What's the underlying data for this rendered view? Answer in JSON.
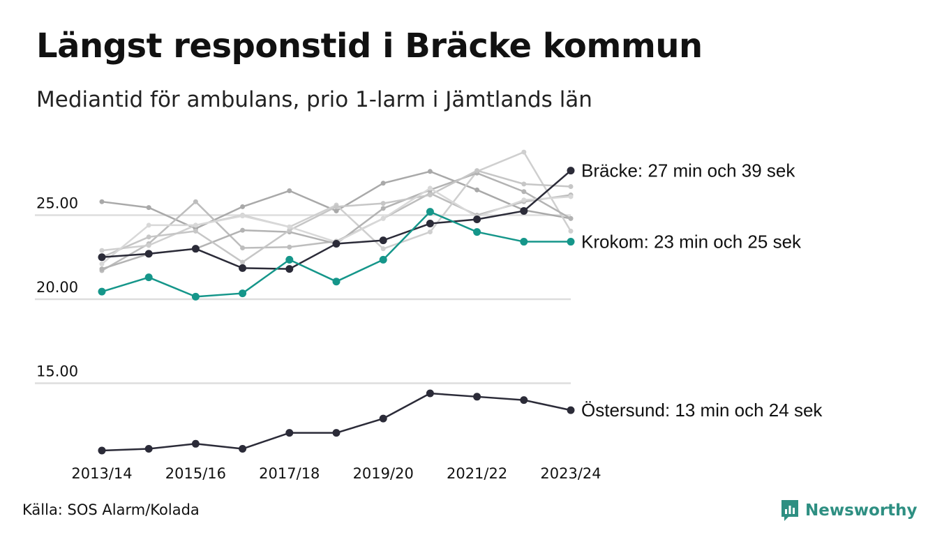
{
  "header": {
    "title": "Längst responstid i Bräcke kommun",
    "subtitle": "Mediantid för ambulans, prio 1-larm i Jämtlands län"
  },
  "footer": {
    "source": "Källa: SOS Alarm/Kolada",
    "logo_text": "Newsworthy"
  },
  "colors": {
    "highlight_dark": "#2b2b38",
    "highlight_teal": "#15968a",
    "background_series": [
      "#a9a9a9",
      "#bdbdbd",
      "#cfcfcf",
      "#b3b3b3",
      "#c6c6c6",
      "#d8d8d8"
    ],
    "grid": "#dddddd",
    "brand": "#2e8f82"
  },
  "chart_data": {
    "type": "line",
    "title": "Längst responstid i Bräcke kommun",
    "subtitle": "Mediantid för ambulans, prio 1-larm i Jämtlands län",
    "x": [
      "2013/14",
      "2014/15",
      "2015/16",
      "2016/17",
      "2017/18",
      "2018/19",
      "2019/20",
      "2020/21",
      "2021/22",
      "2022/23",
      "2023/24"
    ],
    "x_tick_labels": [
      "2013/14",
      "2015/16",
      "2017/18",
      "2019/20",
      "2021/22",
      "2023/24"
    ],
    "y_ticks": [
      "15.00",
      "20.00",
      "25.00"
    ],
    "ylim": [
      10.5,
      29.5
    ],
    "grid": true,
    "legend": "none",
    "series": [
      {
        "values": [
          25.8,
          25.45,
          24.2,
          25.5,
          26.45,
          25.25,
          26.9,
          27.6,
          26.5,
          25.3,
          24.8
        ],
        "role": "background"
      },
      {
        "values": [
          21.7,
          23.3,
          25.8,
          23.05,
          23.1,
          23.45,
          24.8,
          26.3,
          25.0,
          25.8,
          26.2
        ],
        "role": "background"
      },
      {
        "values": [
          22.9,
          23.2,
          24.4,
          25.0,
          24.3,
          25.6,
          23.0,
          24.0,
          27.6,
          28.75,
          24.05
        ],
        "role": "background"
      },
      {
        "values": [
          21.8,
          22.7,
          23.0,
          24.1,
          24.0,
          23.3,
          25.4,
          26.5,
          27.5,
          26.4,
          24.8
        ],
        "role": "background"
      },
      {
        "values": [
          22.5,
          23.7,
          24.05,
          22.2,
          24.1,
          25.5,
          25.7,
          26.2,
          27.65,
          26.85,
          26.7
        ],
        "role": "background"
      },
      {
        "values": [
          22.1,
          24.4,
          24.4,
          24.95,
          24.3,
          23.4,
          24.8,
          26.6,
          24.9,
          25.9,
          26.1
        ],
        "role": "background"
      },
      {
        "name": "Bräcke",
        "values": [
          22.5,
          22.7,
          23.0,
          21.85,
          21.8,
          23.3,
          23.5,
          24.5,
          24.75,
          25.25,
          27.65
        ],
        "role": "dark",
        "end_label": "Bräcke: 27 min och 39 sek"
      },
      {
        "name": "Krokom",
        "values": [
          20.45,
          21.3,
          20.15,
          20.35,
          22.35,
          21.05,
          22.35,
          25.2,
          24.0,
          23.42,
          23.42
        ],
        "role": "teal",
        "end_label": "Krokom: 23 min och 25 sek"
      },
      {
        "name": "Östersund",
        "values": [
          11.0,
          11.1,
          11.4,
          11.1,
          12.05,
          12.05,
          12.9,
          14.4,
          14.2,
          14.0,
          13.4
        ],
        "role": "dark",
        "end_label": "Östersund: 13 min och 24 sek"
      }
    ]
  }
}
